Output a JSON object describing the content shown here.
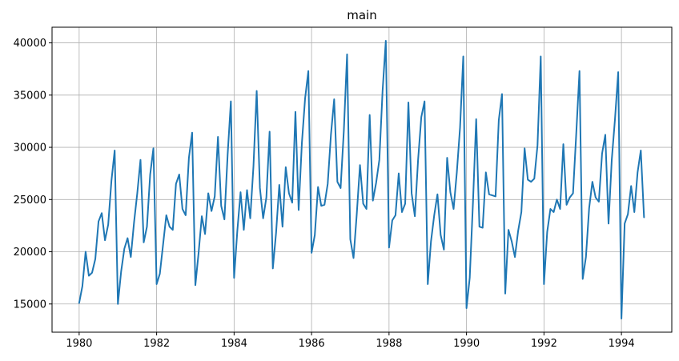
{
  "chart_data": {
    "type": "line",
    "title": "main",
    "xlabel": "",
    "ylabel": "",
    "xlim": [
      1979.3,
      1995.3
    ],
    "ylim": [
      12300,
      41500
    ],
    "grid": true,
    "legend": "none",
    "colors": {
      "line": "#1f77b4",
      "grid": "#b0b0b0",
      "axis": "#000000"
    },
    "x_ticks": [
      1980,
      1982,
      1984,
      1986,
      1988,
      1990,
      1992,
      1994
    ],
    "y_ticks": [
      15000,
      20000,
      25000,
      30000,
      35000,
      40000
    ],
    "series": [
      {
        "x_start": 1980.0,
        "x_step_months": 1,
        "values": [
          15100,
          16700,
          20000,
          17700,
          18000,
          19300,
          22900,
          23700,
          21100,
          22600,
          26800,
          29700,
          15000,
          18100,
          20300,
          21300,
          19500,
          22800,
          25600,
          28800,
          20900,
          22400,
          27400,
          29900,
          16900,
          17900,
          20700,
          23500,
          22400,
          22100,
          26500,
          27400,
          24100,
          23500,
          29000,
          31400,
          16800,
          19900,
          23400,
          21700,
          25600,
          23900,
          25300,
          31000,
          24400,
          23100,
          29300,
          34400,
          17500,
          22000,
          25700,
          22100,
          25900,
          23200,
          28200,
          35400,
          26100,
          23200,
          25200,
          31500,
          18400,
          21800,
          26400,
          22400,
          28100,
          25600,
          24700,
          33400,
          24000,
          30400,
          34700,
          37300,
          19900,
          21600,
          26200,
          24400,
          24500,
          26500,
          31200,
          34600,
          26700,
          26100,
          31600,
          38900,
          21200,
          19400,
          23600,
          28300,
          24600,
          24100,
          33100,
          24900,
          26600,
          28800,
          35400,
          40200,
          20400,
          23000,
          23500,
          27500,
          23800,
          24600,
          34300,
          25600,
          23400,
          28800,
          32900,
          34400,
          16900,
          21000,
          23500,
          25500,
          21600,
          20200,
          29000,
          25700,
          24100,
          27600,
          31900,
          38700,
          14600,
          17500,
          24700,
          32700,
          22400,
          22300,
          27600,
          25500,
          25400,
          25300,
          32600,
          35100,
          16000,
          22100,
          21000,
          19500,
          22000,
          23800,
          29900,
          26900,
          26700,
          27000,
          30200,
          38700,
          16900,
          21900,
          24100,
          23800,
          25000,
          24100,
          30300,
          24500,
          25200,
          25600,
          31300,
          37300,
          17400,
          19500,
          24200,
          26700,
          25200,
          24800,
          29400,
          31200,
          22700,
          28800,
          32700,
          37200,
          13600,
          22700,
          23600,
          26300,
          23800,
          27600,
          29700,
          23300
        ]
      }
    ]
  }
}
